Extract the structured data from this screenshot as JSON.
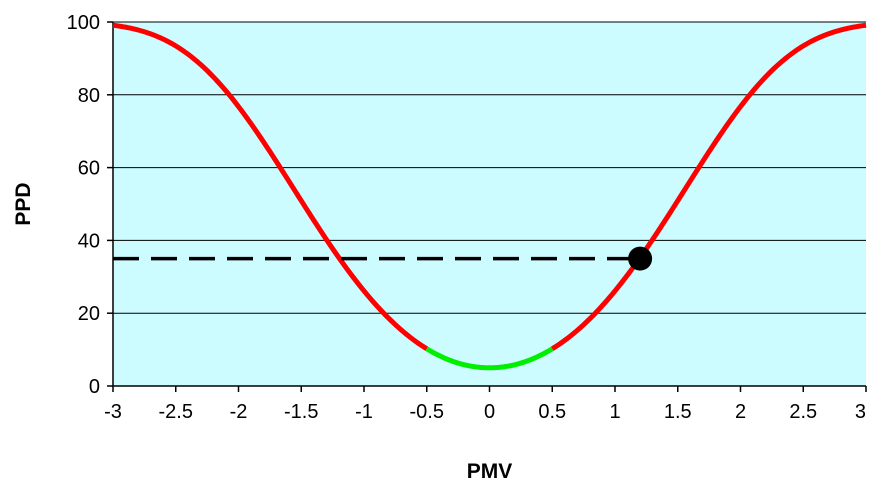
{
  "chart_data": {
    "type": "line",
    "title": "",
    "xlabel": "PMV",
    "ylabel": "PPD",
    "xlim": [
      -3,
      3
    ],
    "ylim": [
      0,
      100
    ],
    "x_ticks": [
      -3,
      -2.5,
      -2,
      -1.5,
      -1,
      -0.5,
      0,
      0.5,
      1,
      1.5,
      2,
      2.5,
      3
    ],
    "x_tick_labels": [
      "-3",
      "-2.5",
      "-2",
      "-1.5",
      "-1",
      "-0.5",
      "0",
      "0.5",
      "1",
      "1.5",
      "2",
      "2.5",
      "3"
    ],
    "y_ticks": [
      0,
      20,
      40,
      60,
      80,
      100
    ],
    "y_tick_labels": [
      "0",
      "20",
      "40",
      "60",
      "80",
      "100"
    ],
    "grid": {
      "horizontal": true,
      "vertical": false
    },
    "colors": {
      "plot_background": "#ccfcff",
      "gridline": "#000000",
      "curve": "#ff0000",
      "comfort_curve": "#00ee00",
      "marker": "#000000",
      "reference_line": "#000000"
    },
    "series": [
      {
        "x": [
          -3,
          -2.75,
          -2.5,
          -2.25,
          -2,
          -1.75,
          -1.5,
          -1.25,
          -1,
          -0.75,
          -0.5,
          -0.25,
          0,
          0.25,
          0.5,
          0.75,
          1,
          1.25,
          1.5,
          1.75,
          2,
          2.25,
          2.5,
          2.75,
          3
        ],
        "y": [
          99.1,
          97.3,
          93.2,
          86.0,
          76.8,
          65.0,
          51.0,
          37.5,
          26.1,
          16.8,
          10.2,
          6.3,
          5.0,
          6.3,
          10.2,
          16.8,
          26.1,
          37.5,
          51.0,
          65.0,
          76.8,
          86.0,
          93.2,
          97.3,
          99.1
        ]
      }
    ],
    "comfort_range": [
      -0.5,
      0.5
    ],
    "highlight_point": {
      "x": 1.2,
      "y": 35
    },
    "reference_line": {
      "y": 35,
      "x_from": -3,
      "x_to": 1.2,
      "style": "dashed"
    }
  }
}
